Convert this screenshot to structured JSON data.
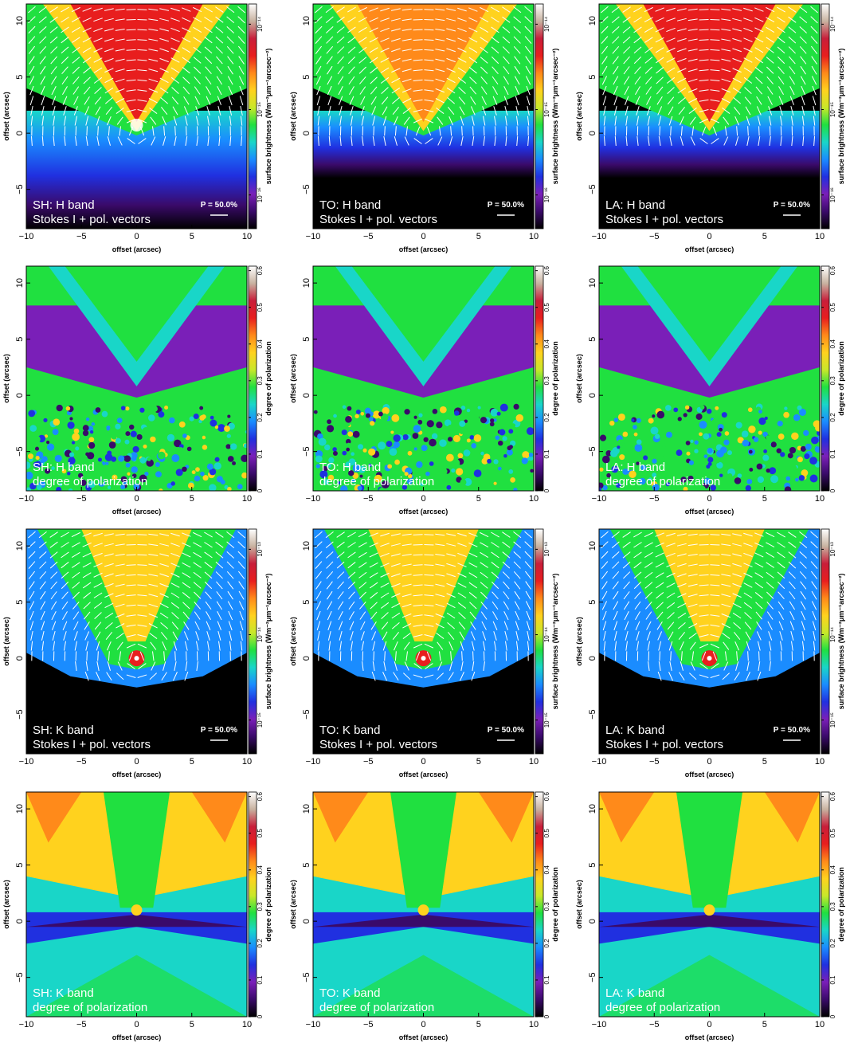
{
  "figure": {
    "colors": {
      "background": "#000000",
      "vectors": "#ffffff",
      "colormap": [
        "#000000",
        "#3a0a6a",
        "#7a1fb8",
        "#2030e0",
        "#1a8cff",
        "#19d6c8",
        "#20e040",
        "#c8e82a",
        "#ffd21e",
        "#ff8a1a",
        "#e81e1e",
        "#c81e3a",
        "#c8b2a0",
        "#ffffff"
      ]
    },
    "axis_tick_labels": [
      "-10",
      "-5",
      "0",
      "5",
      "10"
    ],
    "axis_range": [
      -10,
      10
    ],
    "y_range": [
      -8.5,
      11.5
    ]
  },
  "chart_data": [
    {
      "type": "heatmap",
      "kind": "intensity",
      "source": "SH",
      "band": "H",
      "label_line1": "SH: H band",
      "label_line2": "Stokes I + pol. vectors",
      "scale_text": "P = 50.0%",
      "xlabel": "offset (arcsec)",
      "ylabel": "offset (arcsec)",
      "xlim": [
        -10,
        10
      ],
      "ylim": [
        -8.5,
        11.5
      ],
      "colorbar_label": "surface brightness (Wm⁻²μm⁻¹arcsec⁻²)",
      "colorbar_ticks": [
        "10⁻¹⁴",
        "10⁻¹⁵",
        "10⁻¹⁶"
      ]
    },
    {
      "type": "heatmap",
      "kind": "intensity",
      "source": "TO",
      "band": "H",
      "label_line1": "TO: H band",
      "label_line2": "Stokes I + pol. vectors",
      "scale_text": "P = 50.0%",
      "xlabel": "offset (arcsec)",
      "ylabel": "offset (arcsec)",
      "xlim": [
        -10,
        10
      ],
      "ylim": [
        -8.5,
        11.5
      ],
      "colorbar_label": "surface brightness (Wm⁻²μm⁻¹arcsec⁻²)",
      "colorbar_ticks": [
        "10⁻¹⁴",
        "10⁻¹⁵",
        "10⁻¹⁶"
      ]
    },
    {
      "type": "heatmap",
      "kind": "intensity",
      "source": "LA",
      "band": "H",
      "label_line1": "LA: H band",
      "label_line2": "Stokes I + pol. vectors",
      "scale_text": "P = 50.0%",
      "xlabel": "offset (arcsec)",
      "ylabel": "offset (arcsec)",
      "xlim": [
        -10,
        10
      ],
      "ylim": [
        -8.5,
        11.5
      ],
      "colorbar_label": "surface brightness (Wm⁻²μm⁻¹arcsec⁻²)",
      "colorbar_ticks": [
        "10⁻¹⁴",
        "10⁻¹⁵",
        "10⁻¹⁶"
      ]
    },
    {
      "type": "heatmap",
      "kind": "polarization",
      "source": "SH",
      "band": "H",
      "label_line1": "SH: H band",
      "label_line2": "degree of polarization",
      "xlabel": "offset (arcsec)",
      "ylabel": "offset (arcsec)",
      "xlim": [
        -10,
        10
      ],
      "ylim": [
        -8.5,
        11.5
      ],
      "colorbar_label": "degree of polarization",
      "colorbar_ticks": [
        "0",
        "0.1",
        "0.2",
        "0.3",
        "0.4",
        "0.5",
        "0.6"
      ]
    },
    {
      "type": "heatmap",
      "kind": "polarization",
      "source": "TO",
      "band": "H",
      "label_line1": "TO: H band",
      "label_line2": "degree of polarization",
      "xlabel": "offset (arcsec)",
      "ylabel": "offset (arcsec)",
      "xlim": [
        -10,
        10
      ],
      "ylim": [
        -8.5,
        11.5
      ],
      "colorbar_label": "degree of polarization",
      "colorbar_ticks": [
        "0",
        "0.1",
        "0.2",
        "0.3",
        "0.4",
        "0.5",
        "0.6"
      ]
    },
    {
      "type": "heatmap",
      "kind": "polarization",
      "source": "LA",
      "band": "H",
      "label_line1": "LA: H band",
      "label_line2": "degree of polarization",
      "xlabel": "offset (arcsec)",
      "ylabel": "offset (arcsec)",
      "xlim": [
        -10,
        10
      ],
      "ylim": [
        -8.5,
        11.5
      ],
      "colorbar_label": "degree of polarization",
      "colorbar_ticks": [
        "0",
        "0.1",
        "0.2",
        "0.3",
        "0.4",
        "0.5",
        "0.6"
      ]
    },
    {
      "type": "heatmap",
      "kind": "intensity",
      "source": "SH",
      "band": "K",
      "label_line1": "SH: K band",
      "label_line2": "Stokes I + pol. vectors",
      "scale_text": "P = 50.0%",
      "xlabel": "offset (arcsec)",
      "ylabel": "offset (arcsec)",
      "xlim": [
        -10,
        10
      ],
      "ylim": [
        -8.5,
        11.5
      ],
      "colorbar_label": "surface brightness (Wm⁻²μm⁻¹arcsec⁻²)",
      "colorbar_ticks": [
        "10⁻¹³",
        "10⁻¹⁴",
        "10⁻¹⁵"
      ]
    },
    {
      "type": "heatmap",
      "kind": "intensity",
      "source": "TO",
      "band": "K",
      "label_line1": "TO: K band",
      "label_line2": "Stokes I + pol. vectors",
      "scale_text": "P = 50.0%",
      "xlabel": "offset (arcsec)",
      "ylabel": "offset (arcsec)",
      "xlim": [
        -10,
        10
      ],
      "ylim": [
        -8.5,
        11.5
      ],
      "colorbar_label": "surface brightness (Wm⁻²μm⁻¹arcsec⁻²)",
      "colorbar_ticks": [
        "10⁻¹³",
        "10⁻¹⁴",
        "10⁻¹⁵"
      ]
    },
    {
      "type": "heatmap",
      "kind": "intensity",
      "source": "LA",
      "band": "K",
      "label_line1": "LA: K band",
      "label_line2": "Stokes I + pol. vectors",
      "scale_text": "P = 50.0%",
      "xlabel": "offset (arcsec)",
      "ylabel": "offset (arcsec)",
      "xlim": [
        -10,
        10
      ],
      "ylim": [
        -8.5,
        11.5
      ],
      "colorbar_label": "surface brightness (Wm⁻²μm⁻¹arcsec⁻²)",
      "colorbar_ticks": [
        "10⁻¹³",
        "10⁻¹⁴",
        "10⁻¹⁵"
      ]
    },
    {
      "type": "heatmap",
      "kind": "polarization",
      "source": "SH",
      "band": "K",
      "label_line1": "SH: K band",
      "label_line2": "degree of polarization",
      "xlabel": "offset (arcsec)",
      "ylabel": "offset (arcsec)",
      "xlim": [
        -10,
        10
      ],
      "ylim": [
        -8.5,
        11.5
      ],
      "colorbar_label": "degree of polarization",
      "colorbar_ticks": [
        "0",
        "0.1",
        "0.2",
        "0.3",
        "0.4",
        "0.5",
        "0.6"
      ]
    },
    {
      "type": "heatmap",
      "kind": "polarization",
      "source": "TO",
      "band": "K",
      "label_line1": "TO: K band",
      "label_line2": "degree of polarization",
      "xlabel": "offset (arcsec)",
      "ylabel": "offset (arcsec)",
      "xlim": [
        -10,
        10
      ],
      "ylim": [
        -8.5,
        11.5
      ],
      "colorbar_label": "degree of polarization",
      "colorbar_ticks": [
        "0",
        "0.1",
        "0.2",
        "0.3",
        "0.4",
        "0.5",
        "0.6"
      ]
    },
    {
      "type": "heatmap",
      "kind": "polarization",
      "source": "LA",
      "band": "K",
      "label_line1": "LA: K band",
      "label_line2": "degree of polarization",
      "xlabel": "offset (arcsec)",
      "ylabel": "offset (arcsec)",
      "xlim": [
        -10,
        10
      ],
      "ylim": [
        -8.5,
        11.5
      ],
      "colorbar_label": "degree of polarization",
      "colorbar_ticks": [
        "0",
        "0.1",
        "0.2",
        "0.3",
        "0.4",
        "0.5",
        "0.6"
      ]
    }
  ]
}
